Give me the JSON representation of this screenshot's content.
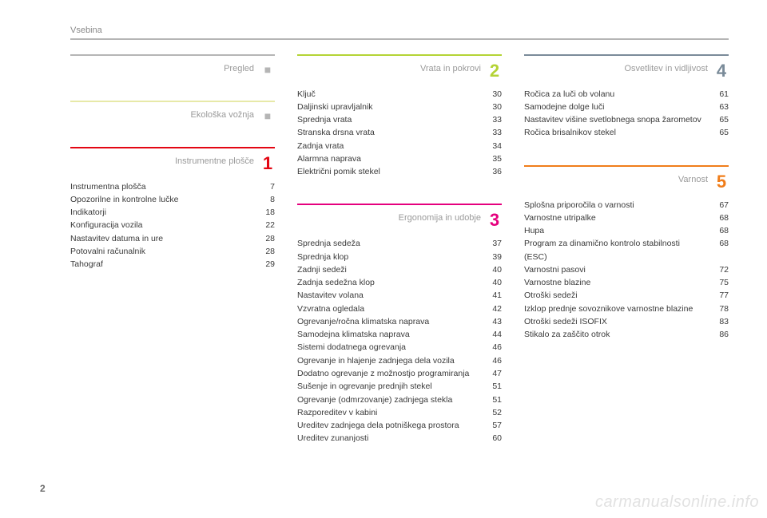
{
  "header": {
    "label": "Vsebina"
  },
  "page_number": "2",
  "watermark": "carmanualsonline.info",
  "colors": {
    "grey": "#b5b5b5",
    "pale_yellow": "#e7e9a8",
    "red": "#e30613",
    "lime": "#b4d335",
    "magenta": "#e5007e",
    "blue_grey": "#7a8b99",
    "orange": "#f07d1a"
  },
  "columns": [
    {
      "sections": [
        {
          "title": "Pregled",
          "marker": "dot",
          "rule_color": "#b5b5b5",
          "num_color": "#b5b5b5",
          "items": []
        },
        {
          "title": "Ekološka vožnja",
          "marker": "dot",
          "rule_color": "#e7e9a8",
          "num_color": "#b5b5b5",
          "items": []
        },
        {
          "title": "Instrumentne plošče",
          "marker": "1",
          "rule_color": "#e30613",
          "num_color": "#e30613",
          "items": [
            {
              "label": "Instrumentna plošča",
              "page": "7"
            },
            {
              "label": "Opozorilne in kontrolne lučke",
              "page": "8"
            },
            {
              "label": "Indikatorji",
              "page": "18"
            },
            {
              "label": "Konfiguracija vozila",
              "page": "22"
            },
            {
              "label": "Nastavitev datuma in ure",
              "page": "28"
            },
            {
              "label": "Potovalni računalnik",
              "page": "28"
            },
            {
              "label": "Tahograf",
              "page": "29"
            }
          ]
        }
      ]
    },
    {
      "sections": [
        {
          "title": "Vrata in pokrovi",
          "marker": "2",
          "rule_color": "#b4d335",
          "num_color": "#b4d335",
          "items": [
            {
              "label": "Ključ",
              "page": "30"
            },
            {
              "label": "Daljinski upravljalnik",
              "page": "30"
            },
            {
              "label": "Sprednja vrata",
              "page": "33"
            },
            {
              "label": "Stranska drsna vrata",
              "page": "33"
            },
            {
              "label": "Zadnja vrata",
              "page": "34"
            },
            {
              "label": "Alarmna naprava",
              "page": "35"
            },
            {
              "label": "Električni pomik stekel",
              "page": "36"
            }
          ]
        },
        {
          "title": "Ergonomija in udobje",
          "marker": "3",
          "rule_color": "#e5007e",
          "num_color": "#e5007e",
          "items": [
            {
              "label": "Sprednja sedeža",
              "page": "37"
            },
            {
              "label": "Sprednja klop",
              "page": "39"
            },
            {
              "label": "Zadnji sedeži",
              "page": "40"
            },
            {
              "label": "Zadnja sedežna klop",
              "page": "40"
            },
            {
              "label": "Nastavitev volana",
              "page": "41"
            },
            {
              "label": "Vzvratna ogledala",
              "page": "42"
            },
            {
              "label": "Ogrevanje/ročna klimatska naprava",
              "page": "43"
            },
            {
              "label": "Samodejna klimatska naprava",
              "page": "44"
            },
            {
              "label": "Sistemi dodatnega ogrevanja",
              "page": "46"
            },
            {
              "label": "Ogrevanje in hlajenje zadnjega dela vozila",
              "page": "46"
            },
            {
              "label": "Dodatno ogrevanje z možnostjo programiranja",
              "page": "47"
            },
            {
              "label": "Sušenje in ogrevanje prednjih stekel",
              "page": "51"
            },
            {
              "label": "Ogrevanje (odmrzovanje) zadnjega stekla",
              "page": "51"
            },
            {
              "label": "Razporeditev v kabini",
              "page": "52"
            },
            {
              "label": "Ureditev zadnjega dela potniškega prostora",
              "page": "57"
            },
            {
              "label": "Ureditev zunanjosti",
              "page": "60"
            }
          ]
        }
      ]
    },
    {
      "sections": [
        {
          "title": "Osvetlitev in vidljivost",
          "marker": "4",
          "rule_color": "#7a8b99",
          "num_color": "#7a8b99",
          "items": [
            {
              "label": "Ročica za luči ob volanu",
              "page": "61"
            },
            {
              "label": "Samodejne dolge luči",
              "page": "63"
            },
            {
              "label": "Nastavitev višine svetlobnega snopa žarometov",
              "page": "65"
            },
            {
              "label": "Ročica brisalnikov stekel",
              "page": "65"
            }
          ]
        },
        {
          "title": "Varnost",
          "marker": "5",
          "rule_color": "#f07d1a",
          "num_color": "#f07d1a",
          "items": [
            {
              "label": "Splošna priporočila o varnosti",
              "page": "67"
            },
            {
              "label": "Varnostne utripalke",
              "page": "68"
            },
            {
              "label": "Hupa",
              "page": "68"
            },
            {
              "label": "Program za dinamično kontrolo stabilnosti (ESC)",
              "page": "68"
            },
            {
              "label": "Varnostni pasovi",
              "page": "72"
            },
            {
              "label": "Varnostne blazine",
              "page": "75"
            },
            {
              "label": "Otroški sedeži",
              "page": "77"
            },
            {
              "label": "Izklop prednje sovoznikove varnostne blazine",
              "page": "78"
            },
            {
              "label": "Otroški sedeži ISOFIX",
              "page": "83"
            },
            {
              "label": "Stikalo za zaščito otrok",
              "page": "86"
            }
          ]
        }
      ]
    }
  ]
}
